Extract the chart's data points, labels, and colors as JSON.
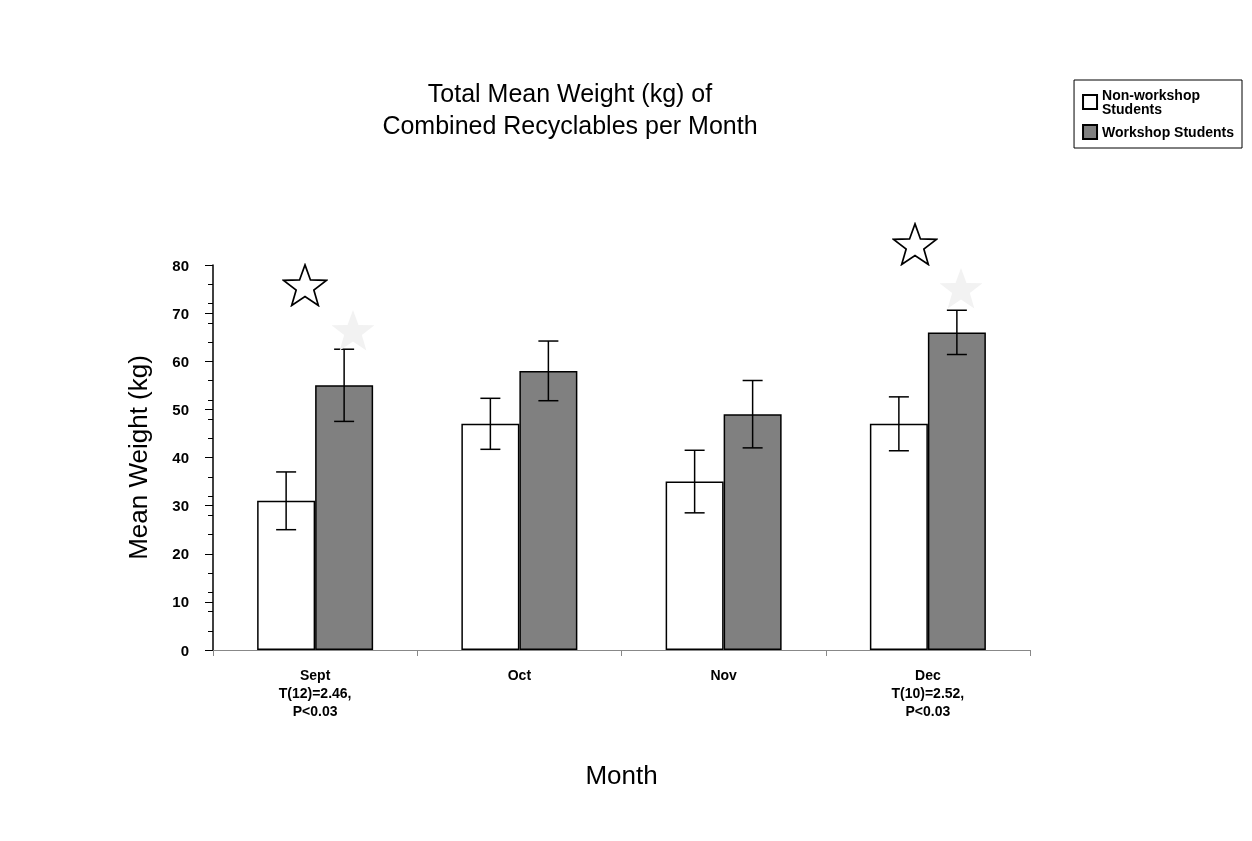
{
  "chart_data": {
    "type": "bar",
    "title": "Total Mean Weight (kg) of\nCombined Recyclables per Month",
    "xlabel": "Month",
    "ylabel": "Mean Weight (kg)",
    "categories": [
      "Sept\nT(12)=2.46,\nP<0.03",
      "Oct",
      "Nov",
      "Dec\nT(10)=2.52,\nP<0.03"
    ],
    "series": [
      {
        "name": "Non-workshop\nStudents",
        "color": "#ffffff",
        "values": [
          31,
          47,
          35,
          47
        ],
        "errors": [
          6,
          5.3,
          6.5,
          5.6
        ]
      },
      {
        "name": "Workshop Students",
        "color": "#808080",
        "values": [
          55,
          58,
          49,
          66
        ],
        "errors": [
          7.5,
          6.2,
          7,
          4.6
        ]
      }
    ],
    "ylim": [
      0,
      80
    ],
    "yticks": [
      0,
      10,
      20,
      30,
      40,
      50,
      60,
      70,
      80
    ],
    "grid": false,
    "legend": "top right"
  }
}
